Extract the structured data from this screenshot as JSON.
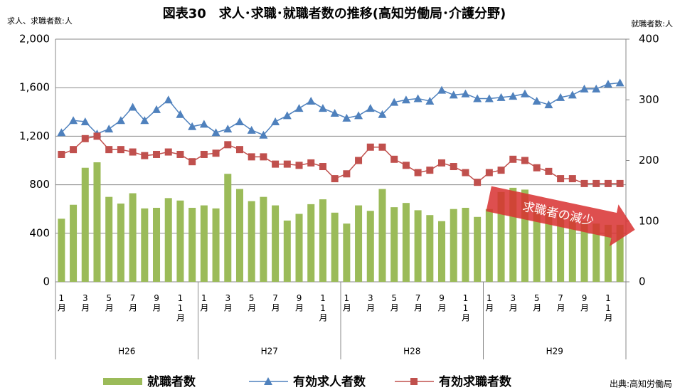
{
  "chart_data": {
    "type": "combo",
    "title": "図表30　求人･求職･就職者数の推移(高知労働局･介護分野)",
    "y_axis_title": "求人、求職者数:人",
    "y2_axis_title": "就職者数:人",
    "annotation": "求職者の減少",
    "source": "出典:高知労働局",
    "categories": [
      "1月",
      null,
      "3月",
      null,
      "5月",
      null,
      "7月",
      null,
      "9月",
      null,
      "11月",
      null,
      "1月",
      null,
      "3月",
      null,
      "5月",
      null,
      "7月",
      null,
      "9月",
      null,
      "11月",
      null,
      "1月",
      null,
      "3月",
      null,
      "5月",
      null,
      "7月",
      null,
      "9月",
      null,
      "11月",
      null,
      "1月",
      null,
      "3月",
      null,
      "5月",
      null,
      "7月",
      null,
      "9月",
      null,
      "11月",
      null
    ],
    "groups": [
      "H26",
      "H27",
      "H28",
      "H29"
    ],
    "ylim": [
      0,
      2000
    ],
    "yticks": [
      0,
      400,
      800,
      {
        "value": 1200,
        "label": "1,200"
      },
      {
        "value": 1600,
        "label": "1,600"
      },
      {
        "value": 2000,
        "label": "2,000"
      }
    ],
    "y2lim": [
      0,
      400
    ],
    "y2ticks": [
      0,
      100,
      200,
      300,
      400
    ],
    "grid": true,
    "series": [
      {
        "name": "就職者数",
        "type": "bar",
        "axis": "y2",
        "color": "#9bbb59",
        "values": [
          104,
          127,
          188,
          197,
          140,
          129,
          146,
          121,
          122,
          138,
          134,
          122,
          126,
          121,
          178,
          153,
          133,
          140,
          126,
          101,
          112,
          128,
          136,
          114,
          96,
          126,
          117,
          153,
          123,
          130,
          118,
          110,
          100,
          120,
          122,
          107,
          120,
          148,
          155,
          152,
          120,
          124,
          112,
          108,
          100,
          96,
          94,
          94
        ]
      },
      {
        "name": "有効求人者数",
        "type": "line",
        "marker": "triangle",
        "color": "#4f81bd",
        "values": [
          1230,
          1330,
          1320,
          1220,
          1260,
          1330,
          1440,
          1330,
          1420,
          1500,
          1380,
          1280,
          1300,
          1230,
          1260,
          1320,
          1250,
          1210,
          1320,
          1370,
          1430,
          1490,
          1430,
          1390,
          1350,
          1370,
          1430,
          1380,
          1480,
          1500,
          1510,
          1490,
          1580,
          1540,
          1550,
          1510,
          1510,
          1520,
          1530,
          1550,
          1490,
          1460,
          1520,
          1540,
          1590,
          1590,
          1630,
          1640
        ]
      },
      {
        "name": "有効求職者数",
        "type": "line",
        "marker": "square",
        "color": "#c0504d",
        "values": [
          1050,
          1090,
          1180,
          1200,
          1090,
          1090,
          1070,
          1040,
          1050,
          1070,
          1050,
          990,
          1050,
          1060,
          1130,
          1090,
          1030,
          1030,
          970,
          970,
          960,
          980,
          950,
          850,
          890,
          1000,
          1110,
          1110,
          1010,
          960,
          900,
          920,
          980,
          950,
          900,
          820,
          900,
          920,
          1010,
          1000,
          940,
          910,
          850,
          850,
          810,
          810,
          810,
          810
        ]
      }
    ]
  }
}
